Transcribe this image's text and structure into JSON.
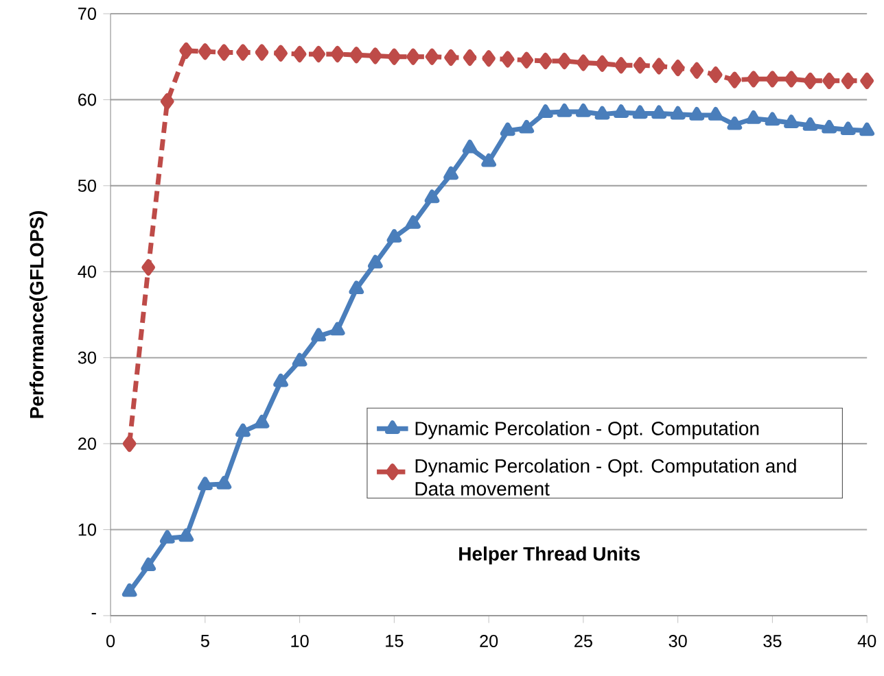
{
  "chart_data": {
    "type": "line",
    "xlabel": "Helper Thread Units",
    "ylabel": "Performance(GFLOPS)",
    "x": [
      1,
      2,
      3,
      4,
      5,
      6,
      7,
      8,
      9,
      10,
      11,
      12,
      13,
      14,
      15,
      16,
      17,
      18,
      19,
      20,
      21,
      22,
      23,
      24,
      25,
      26,
      27,
      28,
      29,
      30,
      31,
      32,
      33,
      34,
      35,
      36,
      37,
      38,
      39,
      40
    ],
    "series": [
      {
        "name": "Dynamic Percolation - Opt. Computation",
        "color": "#4a7ebb",
        "marker": "triangle",
        "line_style": "solid",
        "values": [
          2.8,
          5.8,
          9,
          9.2,
          15.2,
          15.3,
          21.4,
          22.4,
          27.2,
          29.6,
          32.5,
          33.2,
          38,
          41,
          44,
          45.6,
          48.6,
          51.3,
          54.4,
          52.8,
          56.4,
          56.7,
          58.5,
          58.6,
          58.6,
          58.3,
          58.5,
          58.4,
          58.4,
          58.3,
          58.2,
          58.2,
          57.1,
          57.8,
          57.6,
          57.3,
          57,
          56.7,
          56.5,
          56.4
        ]
      },
      {
        "name": "Dynamic Percolation - Opt. Computation and Data movement",
        "color": "#be4b48",
        "marker": "diamond",
        "line_style": "dashed",
        "values": [
          20,
          40.5,
          59.8,
          65.7,
          65.6,
          65.5,
          65.5,
          65.5,
          65.4,
          65.3,
          65.3,
          65.3,
          65.2,
          65.1,
          65,
          65,
          65,
          64.9,
          64.9,
          64.8,
          64.7,
          64.6,
          64.5,
          64.5,
          64.3,
          64.2,
          64,
          64,
          63.9,
          63.7,
          63.4,
          62.9,
          62.3,
          62.4,
          62.4,
          62.4,
          62.2,
          62.2,
          62.2,
          62.2
        ]
      }
    ],
    "xlim": [
      0,
      40
    ],
    "xticks": [
      0,
      5,
      10,
      15,
      20,
      25,
      30,
      35,
      40
    ],
    "ylim": [
      0,
      70
    ],
    "yticks": [
      {
        "value": 0,
        "label": "-"
      },
      10,
      20,
      30,
      40,
      50,
      60,
      70
    ],
    "grid": "y",
    "legend": "right"
  }
}
